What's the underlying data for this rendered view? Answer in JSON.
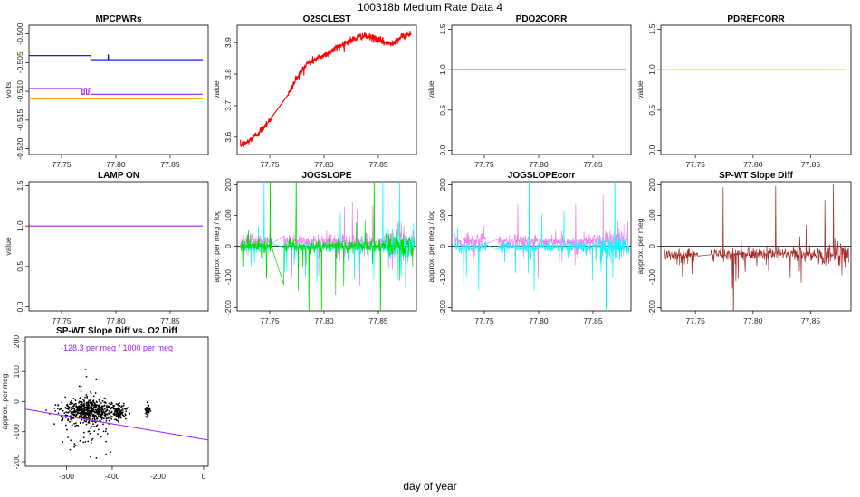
{
  "figure": {
    "title": "100318b   Medium Rate Data 4",
    "xlabel": "day of year"
  },
  "chart_data": [
    {
      "id": "mpcpwrs",
      "type": "line",
      "title": "MPCPWRs",
      "xlabel": "",
      "ylabel": "volts",
      "xlim": [
        77.72,
        77.885
      ],
      "ylim": [
        -0.521,
        -0.4985
      ],
      "xticks": [
        77.75,
        77.8,
        77.85
      ],
      "xtick_labels": [
        "77.75",
        "77.80",
        "77.85"
      ],
      "yticks": [
        -0.52,
        -0.515,
        -0.51,
        -0.505,
        -0.5
      ],
      "ytick_labels": [
        "-0.520",
        "-0.515",
        "-0.510",
        "-0.505",
        "-0.500"
      ],
      "series": [
        {
          "name": "blue",
          "color": "#0000ff",
          "steps": [
            [
              77.72,
              -0.5038
            ],
            [
              77.777,
              -0.5038
            ],
            [
              77.777,
              -0.5045
            ],
            [
              77.88,
              -0.5045
            ]
          ],
          "spikes": [
            [
              77.793,
              -0.5045,
              -0.5036
            ]
          ]
        },
        {
          "name": "purple",
          "color": "#a020f0",
          "steps": [
            [
              77.72,
              -0.5095
            ],
            [
              77.769,
              -0.5095
            ],
            [
              77.769,
              -0.5105
            ],
            [
              77.771,
              -0.5105
            ],
            [
              77.771,
              -0.5095
            ],
            [
              77.773,
              -0.5095
            ],
            [
              77.773,
              -0.5105
            ],
            [
              77.775,
              -0.5105
            ],
            [
              77.775,
              -0.5095
            ],
            [
              77.777,
              -0.5095
            ],
            [
              77.777,
              -0.5105
            ],
            [
              77.88,
              -0.5105
            ]
          ]
        },
        {
          "name": "orange",
          "color": "#ffa500",
          "steps": [
            [
              77.72,
              -0.5113
            ],
            [
              77.88,
              -0.5113
            ]
          ]
        }
      ]
    },
    {
      "id": "o2sclest",
      "type": "line",
      "title": "O2SCLEST",
      "xlabel": "",
      "ylabel": "value",
      "xlim": [
        77.72,
        77.885
      ],
      "ylim": [
        3.545,
        3.955
      ],
      "xticks": [
        77.75,
        77.8,
        77.85
      ],
      "xtick_labels": [
        "77.75",
        "77.80",
        "77.85"
      ],
      "yticks": [
        3.6,
        3.7,
        3.8,
        3.9
      ],
      "ytick_labels": [
        "3.6",
        "3.7",
        "3.8",
        "3.9"
      ],
      "series": [
        {
          "name": "O2SCLEST",
          "color": "#ff0000",
          "noise": 0.006,
          "x": [
            77.723,
            77.73,
            77.74,
            77.75,
            77.768,
            77.775,
            77.785,
            77.8,
            77.82,
            77.835,
            77.845,
            77.86,
            77.87,
            77.88
          ],
          "y": [
            3.575,
            3.585,
            3.615,
            3.655,
            3.74,
            3.79,
            3.835,
            3.86,
            3.9,
            3.922,
            3.915,
            3.895,
            3.915,
            3.93
          ]
        }
      ]
    },
    {
      "id": "pdo2corr",
      "type": "line",
      "title": "PDO2CORR",
      "xlabel": "",
      "ylabel": "value",
      "xlim": [
        77.72,
        77.885
      ],
      "ylim": [
        -0.05,
        1.55
      ],
      "xticks": [
        77.75,
        77.8,
        77.85
      ],
      "xtick_labels": [
        "77.75",
        "77.80",
        "77.85"
      ],
      "yticks": [
        0,
        0.5,
        1,
        1.5
      ],
      "ytick_labels": [
        "0.0",
        "0.5",
        "1.0",
        "1.5"
      ],
      "series": [
        {
          "name": "PDO2CORR",
          "color": "#006400",
          "x": [
            77.72,
            77.88
          ],
          "y": [
            1.0,
            1.0
          ]
        }
      ]
    },
    {
      "id": "pdrefcorr",
      "type": "line",
      "title": "PDREFCORR",
      "xlabel": "",
      "ylabel": "value",
      "xlim": [
        77.72,
        77.885
      ],
      "ylim": [
        -0.05,
        1.55
      ],
      "xticks": [
        77.75,
        77.8,
        77.85
      ],
      "xtick_labels": [
        "77.75",
        "77.80",
        "77.85"
      ],
      "yticks": [
        0,
        0.5,
        1,
        1.5
      ],
      "ytick_labels": [
        "0.0",
        "0.5",
        "1.0",
        "1.5"
      ],
      "series": [
        {
          "name": "PDREFCORR",
          "color": "#ffa500",
          "x": [
            77.72,
            77.88
          ],
          "y": [
            1.0,
            1.0
          ]
        }
      ]
    },
    {
      "id": "lampon",
      "type": "line",
      "title": "LAMP ON",
      "xlabel": "",
      "ylabel": "value",
      "xlim": [
        77.72,
        77.885
      ],
      "ylim": [
        -0.05,
        1.55
      ],
      "xticks": [
        77.75,
        77.8,
        77.85
      ],
      "xtick_labels": [
        "77.75",
        "77.80",
        "77.85"
      ],
      "yticks": [
        0,
        0.5,
        1,
        1.5
      ],
      "ytick_labels": [
        "0.0",
        "0.5",
        "1.0",
        "1.5"
      ],
      "series": [
        {
          "name": "LAMP ON",
          "color": "#a020f0",
          "x": [
            77.72,
            77.88
          ],
          "y": [
            1.0,
            1.0
          ]
        }
      ]
    },
    {
      "id": "jogslope",
      "type": "line",
      "title": "JOGSLOPE",
      "xlabel": "",
      "ylabel": "approx. per meg / log",
      "xlim": [
        77.72,
        77.885
      ],
      "ylim": [
        -210,
        210
      ],
      "xticks": [
        77.75,
        77.8,
        77.85
      ],
      "xtick_labels": [
        "77.75",
        "77.80",
        "77.85"
      ],
      "yticks": [
        -200,
        -100,
        0,
        100,
        200
      ],
      "ytick_labels": [
        "-200",
        "-100",
        "0",
        "100",
        "200"
      ],
      "hline": 0,
      "series": [
        {
          "name": "violet",
          "color": "#ee82ee",
          "base": 15,
          "noise": 12,
          "spike_scale": 60
        },
        {
          "name": "cyan",
          "color": "#00ffff",
          "base": -3,
          "noise": 8,
          "spike_scale": 120
        },
        {
          "name": "green",
          "color": "#00dd00",
          "base": 0,
          "noise": 10,
          "spike_scale": 150
        }
      ]
    },
    {
      "id": "jogslopecorr",
      "type": "line",
      "title": "JOGSLOPEcorr",
      "xlabel": "",
      "ylabel": "approx. per meg / log",
      "xlim": [
        77.72,
        77.885
      ],
      "ylim": [
        -210,
        210
      ],
      "xticks": [
        77.75,
        77.8,
        77.85
      ],
      "xtick_labels": [
        "77.75",
        "77.80",
        "77.85"
      ],
      "yticks": [
        -200,
        -100,
        0,
        100,
        200
      ],
      "ytick_labels": [
        "-200",
        "-100",
        "0",
        "100",
        "200"
      ],
      "hline": 0,
      "series": [
        {
          "name": "violet",
          "color": "#ee82ee",
          "base": 15,
          "noise": 12,
          "spike_scale": 60
        },
        {
          "name": "cyan",
          "color": "#00ffff",
          "base": -3,
          "noise": 8,
          "spike_scale": 140
        }
      ]
    },
    {
      "id": "spwtslopediff",
      "type": "line",
      "title": "SP-WT Slope Diff",
      "xlabel": "",
      "ylabel": "approx. per meg",
      "xlim": [
        77.72,
        77.885
      ],
      "ylim": [
        -210,
        210
      ],
      "xticks": [
        77.75,
        77.8,
        77.85
      ],
      "xtick_labels": [
        "77.75",
        "77.80",
        "77.85"
      ],
      "yticks": [
        -200,
        -100,
        0,
        100,
        200
      ],
      "ytick_labels": [
        "-200",
        "-100",
        "0",
        "100",
        "200"
      ],
      "hline": 0,
      "series": [
        {
          "name": "SP-WT Slope Diff",
          "color": "#a52a2a",
          "base": -25,
          "noise": 10,
          "spike_scale": 110
        }
      ]
    },
    {
      "id": "scatter",
      "type": "scatter",
      "title": "SP-WT Slope Diff vs. O2 Diff",
      "xlabel": "",
      "ylabel": "approx. per meg",
      "xlim": [
        -780,
        20
      ],
      "ylim": [
        -215,
        215
      ],
      "xticks": [
        -600,
        -400,
        -200,
        0
      ],
      "xtick_labels": [
        "-600",
        "-400",
        "-200",
        "0"
      ],
      "yticks": [
        -200,
        -100,
        0,
        100,
        200
      ],
      "ytick_labels": [
        "-200",
        "-100",
        "0",
        "100",
        "200"
      ],
      "annotation": "-128.3 per meg / 1000 per meg",
      "fit": {
        "slope": -0.1283,
        "intercept": -125,
        "color": "#a020f0"
      },
      "clusters": [
        {
          "x_center": -500,
          "x_spread": 110,
          "y_center": -30,
          "y_spread": 18,
          "count": 520
        },
        {
          "x_center": -370,
          "x_spread": 25,
          "y_center": -35,
          "y_spread": 15,
          "count": 90
        },
        {
          "x_center": -245,
          "x_spread": 12,
          "y_center": -30,
          "y_spread": 10,
          "count": 40
        },
        {
          "x_center": -500,
          "x_spread": 90,
          "y_center": -60,
          "y_spread": 60,
          "count": 110
        }
      ]
    }
  ]
}
